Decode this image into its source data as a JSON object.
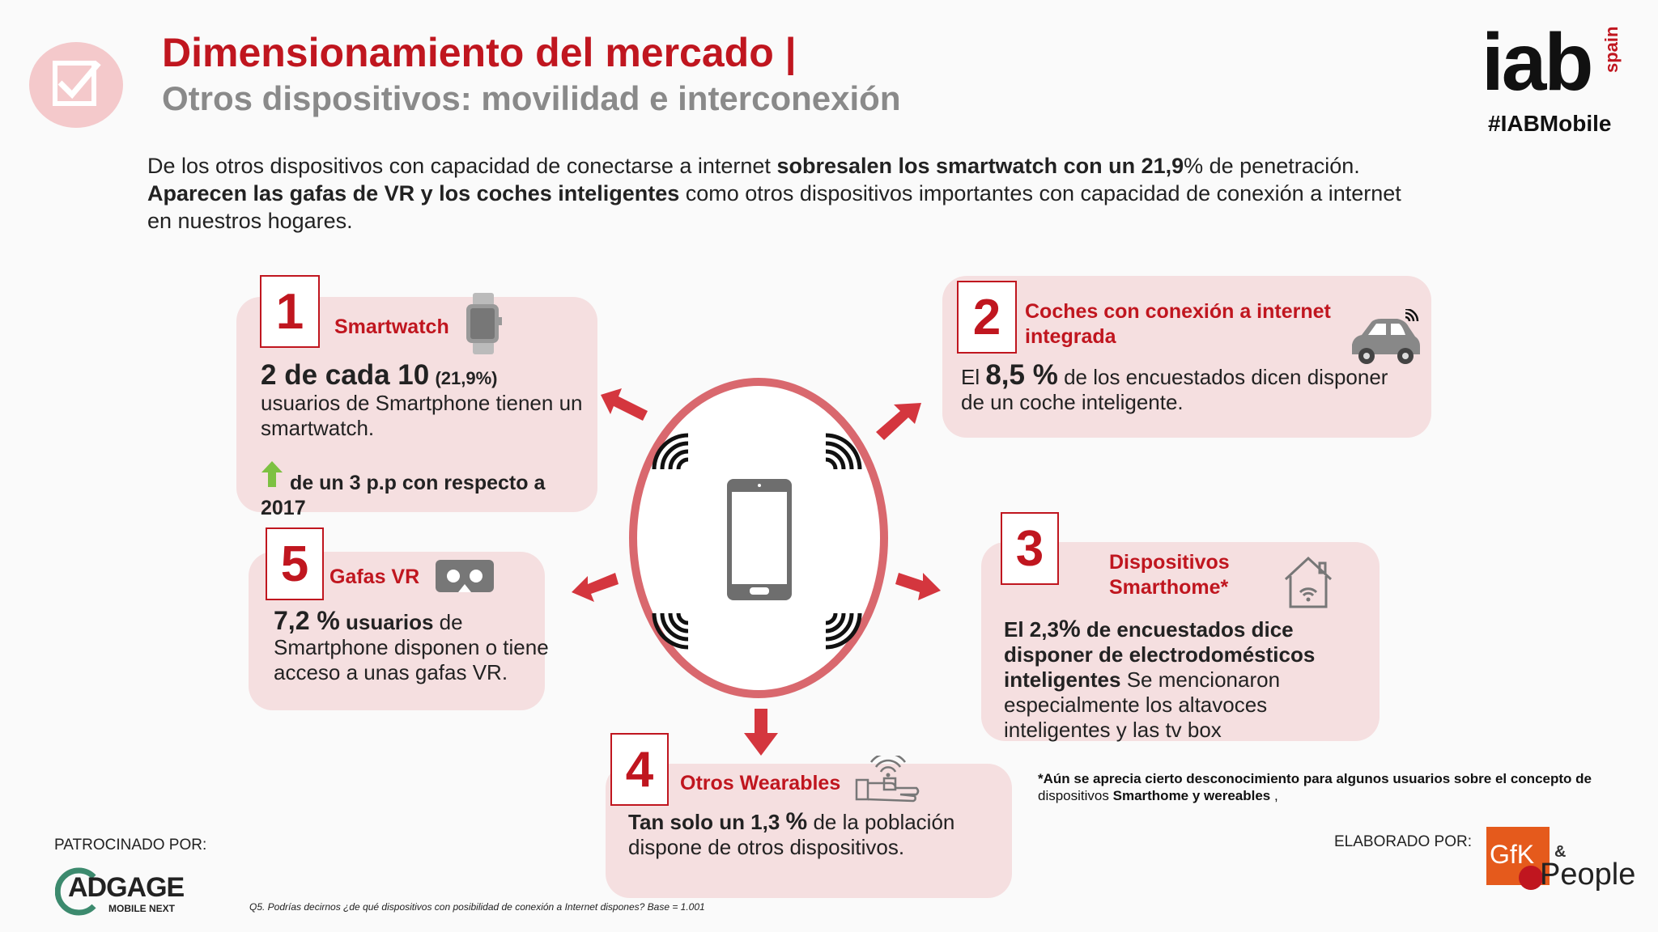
{
  "header": {
    "title": "Dimensionamiento del mercado |",
    "subtitle": "Otros dispositivos: movilidad e interconexión",
    "brand": "iab",
    "brand_suffix": "spain",
    "hashtag": "#IABMobile"
  },
  "intro": {
    "p1": "De los otros dispositivos con capacidad de conectarse a internet ",
    "p1_bold": "sobresalen los smartwatch con un 21,9",
    "p1_end": "% de penetración.",
    "p2_bold": "Aparecen las gafas de VR y los coches inteligentes",
    "p2": " como otros dispositivos importantes con capacidad de conexión a internet en nuestros hogares."
  },
  "cards": {
    "smartwatch": {
      "num": "1",
      "title": "Smartwatch",
      "big": "2 de cada 10",
      "pct": "(21,9%)",
      "body": "usuarios de Smartphone tienen un smartwatch.",
      "change": "de un 3 p.p con respecto a 2017"
    },
    "coches": {
      "num": "2",
      "title": "Coches con conexión a internet integrada",
      "pre": "El ",
      "big": "8,5 %",
      "body": " de los encuestados dicen disponer de un coche inteligente."
    },
    "smarthome": {
      "num": "3",
      "title": "Dispositivos Smarthome*",
      "pre": "El 2,3",
      "pct": "%",
      "bold": " de encuestados dice disponer de electrodomésticos inteligentes",
      "body": " Se mencionaron especialmente los altavoces inteligentes y las tv box"
    },
    "wearables": {
      "num": "4",
      "title": "Otros Wearables",
      "bold": "Tan solo un 1,3 ",
      "pct": "%",
      "body": " de la población dispone de otros dispositivos."
    },
    "gafas": {
      "num": "5",
      "title": "Gafas VR",
      "big": "7,2 %",
      "bold": " usuarios",
      "body": " de Smartphone disponen o tiene acceso a unas gafas VR."
    }
  },
  "footnote": {
    "a": "*Aún se aprecia cierto desconocimiento para algunos usuarios sobre el concepto de",
    "b": "dispositivos ",
    "b_bold": "Smarthome y wereables",
    "b_end": " ,"
  },
  "question": "Q5. Podrías decirnos ¿de qué dispositivos con posibilidad de conexión a Internet dispones? Base = 1.001",
  "sponsor": {
    "label": "PATROCINADO POR:",
    "logo": "ADGAGE",
    "logo_sub": "MOBILE NEXT"
  },
  "elaborado": {
    "label": "ELABORADO POR:",
    "logo_a": "GfK",
    "logo_amp": "&",
    "logo_b": "People"
  },
  "colors": {
    "accent": "#c0161f",
    "card": "#f5dfe0",
    "ring": "#d9686e",
    "arrow": "#d4363e",
    "up": "#7dc142"
  }
}
